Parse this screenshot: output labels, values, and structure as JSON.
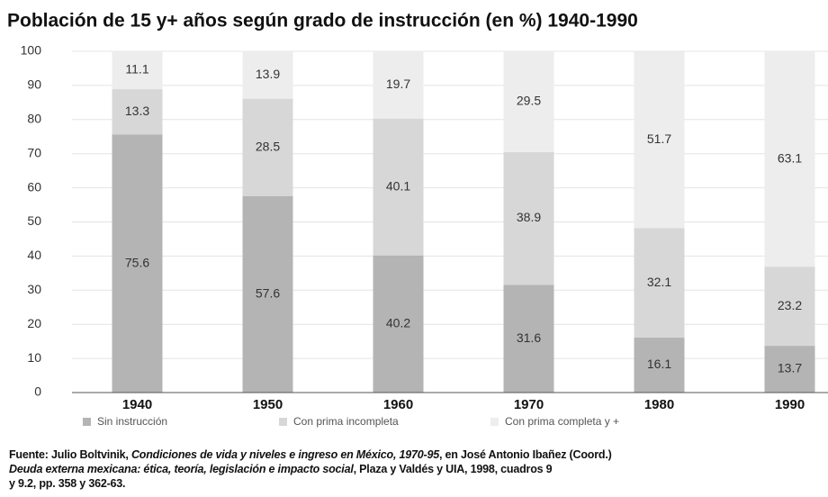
{
  "chart_data": {
    "type": "stacked_bar",
    "title": "Población de 15 y+ años según grado de instrucción (en %) 1940-1990",
    "categories": [
      "1940",
      "1950",
      "1960",
      "1970",
      "1980",
      "1990"
    ],
    "series": [
      {
        "name": "Sin instrucción",
        "color": "#b4b4b4",
        "values": [
          75.6,
          57.6,
          40.2,
          31.6,
          16.1,
          13.7
        ]
      },
      {
        "name": "Con prima incompleta",
        "color": "#d7d7d7",
        "values": [
          13.3,
          28.5,
          40.1,
          38.9,
          32.1,
          23.2
        ]
      },
      {
        "name": "Con prima completa y +",
        "color": "#ededed",
        "values": [
          11.1,
          13.9,
          19.7,
          29.5,
          51.7,
          63.1
        ]
      }
    ],
    "ylim": [
      0,
      100
    ],
    "yticks": [
      0,
      10,
      20,
      30,
      40,
      50,
      60,
      70,
      80,
      90,
      100
    ],
    "grid": true,
    "legend": "bottom",
    "source": [
      [
        {
          "text": "Fuente: Julio Boltvinik, ",
          "italic": false
        },
        {
          "text": "Condiciones de vida y niveles e ingreso en México, 1970-95",
          "italic": true
        },
        {
          "text": ", en José Antonio Ibañez (Coord.)",
          "italic": false
        }
      ],
      [
        {
          "text": "Deuda externa mexicana: ética, teoría, legislación e impacto social",
          "italic": true
        },
        {
          "text": ", Plaza y Valdés y UIA, 1998, cuadros 9",
          "italic": false
        }
      ],
      [
        {
          "text": "y 9.2, pp. 358 y 362-63.",
          "italic": false
        }
      ]
    ]
  }
}
